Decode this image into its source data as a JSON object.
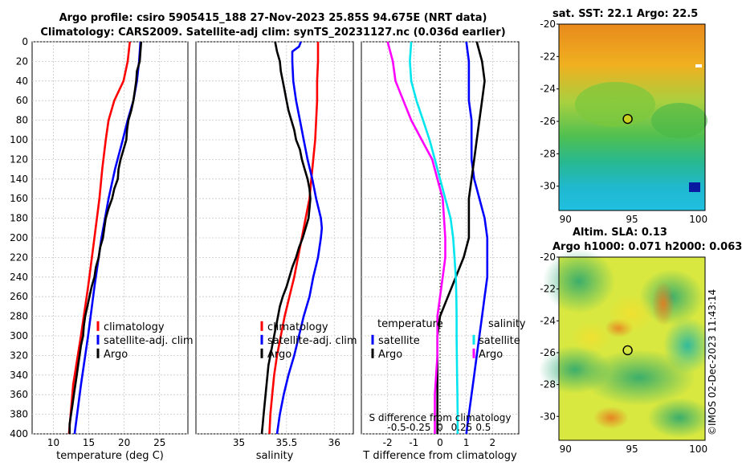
{
  "header": {
    "title_line1": "Argo profile: csiro 5905415_188 27-Nov-2023 25.85S 94.675E (NRT data)",
    "title_line2": "Climatology: CARS2009. Satellite-adj clim: synTS_20231127.nc (0.036d earlier)"
  },
  "maps": {
    "sst_title": "sat. SST: 22.1 Argo: 22.5",
    "sla_title": "Altim. SLA: 0.13",
    "sla_subtitle": "Argo h1000: 0.071 h2000: 0.063",
    "lat_ticks": [
      "-20",
      "-22",
      "-24",
      "-26",
      "-28",
      "-30"
    ],
    "lon_ticks": [
      "90",
      "95",
      "100"
    ],
    "float_position": {
      "lon": 94.675,
      "lat": -25.85
    }
  },
  "credit": "©IMOS 02-Dec-2023 11:43:14",
  "colors": {
    "climatology": "#ff0000",
    "satellite": "#0000ff",
    "argo": "#000000",
    "s_diff": "#ff00ff",
    "s_sat": "#00e5ee"
  },
  "chart_data": [
    {
      "type": "line",
      "id": "temperature",
      "xlabel": "temperature (deg C)",
      "ylabel": "",
      "xlim": [
        7,
        29
      ],
      "ylim": [
        400,
        0
      ],
      "xticks": [
        "10",
        "15",
        "20",
        "25"
      ],
      "yticks": [
        "0",
        "20",
        "40",
        "60",
        "80",
        "100",
        "120",
        "140",
        "160",
        "180",
        "200",
        "220",
        "240",
        "260",
        "280",
        "300",
        "320",
        "340",
        "360",
        "380",
        "400"
      ],
      "legend": [
        "climatology",
        "satellite-adj. clim",
        "Argo"
      ],
      "series": [
        {
          "name": "climatology",
          "depth": [
            0,
            20,
            40,
            60,
            80,
            100,
            130,
            160,
            200,
            250,
            300,
            350,
            400
          ],
          "values": [
            20.8,
            20.5,
            19.9,
            18.6,
            17.8,
            17.4,
            16.9,
            16.5,
            15.8,
            14.9,
            13.9,
            12.8,
            12.2
          ]
        },
        {
          "name": "satellite-adj. clim",
          "depth": [
            0,
            20,
            40,
            60,
            80,
            100,
            130,
            160,
            200,
            250,
            300,
            350,
            400
          ],
          "values": [
            22.3,
            22.1,
            21.8,
            21.3,
            20.5,
            19.8,
            18.7,
            17.8,
            16.8,
            15.8,
            14.9,
            13.9,
            13.0
          ]
        },
        {
          "name": "Argo",
          "depth": [
            0,
            10,
            20,
            30,
            40,
            50,
            60,
            70,
            80,
            90,
            100,
            110,
            120,
            130,
            140,
            150,
            160,
            170,
            180,
            190,
            200,
            210,
            220,
            230,
            240,
            250,
            260,
            270,
            280,
            290,
            300,
            310,
            320,
            330,
            340,
            350,
            360,
            370,
            380,
            390,
            400
          ],
          "values": [
            22.4,
            22.3,
            22.2,
            21.8,
            21.7,
            21.5,
            21.3,
            21.0,
            20.6,
            20.4,
            20.3,
            19.9,
            19.5,
            19.2,
            19.1,
            18.6,
            18.3,
            17.8,
            17.4,
            17.2,
            17.0,
            16.6,
            16.4,
            16.0,
            15.8,
            15.4,
            15.1,
            14.8,
            14.5,
            14.3,
            14.2,
            13.9,
            13.7,
            13.5,
            13.3,
            13.1,
            12.9,
            12.7,
            12.5,
            12.3,
            12.3
          ]
        }
      ]
    },
    {
      "type": "line",
      "id": "salinity",
      "xlabel": "salinity",
      "xlim": [
        34.55,
        36.2
      ],
      "ylim": [
        400,
        0
      ],
      "xticks": [
        "35",
        "35.5",
        "36"
      ],
      "legend": [
        "climatology",
        "satellite-adj. clim",
        "Argo"
      ],
      "series": [
        {
          "name": "climatology",
          "depth": [
            0,
            20,
            40,
            60,
            80,
            100,
            120,
            140,
            160,
            180,
            200,
            220,
            240,
            260,
            280,
            300,
            320,
            340,
            360,
            380,
            400
          ],
          "values": [
            35.83,
            35.83,
            35.82,
            35.82,
            35.81,
            35.8,
            35.78,
            35.76,
            35.74,
            35.7,
            35.66,
            35.62,
            35.58,
            35.53,
            35.48,
            35.44,
            35.4,
            35.37,
            35.35,
            35.33,
            35.32
          ]
        },
        {
          "name": "satellite-adj. clim",
          "depth": [
            0,
            5,
            10,
            20,
            40,
            60,
            80,
            100,
            120,
            140,
            160,
            180,
            190,
            200,
            220,
            240,
            260,
            280,
            300,
            320,
            340,
            360,
            380,
            400
          ],
          "values": [
            35.65,
            35.63,
            35.56,
            35.56,
            35.57,
            35.6,
            35.64,
            35.68,
            35.72,
            35.77,
            35.81,
            35.86,
            35.87,
            35.86,
            35.83,
            35.78,
            35.74,
            35.68,
            35.63,
            35.58,
            35.52,
            35.47,
            35.43,
            35.4
          ]
        },
        {
          "name": "Argo",
          "depth": [
            0,
            10,
            20,
            30,
            40,
            50,
            60,
            70,
            80,
            90,
            100,
            110,
            120,
            130,
            140,
            150,
            160,
            170,
            180,
            190,
            200,
            210,
            220,
            230,
            240,
            250,
            260,
            270,
            280,
            290,
            300,
            310,
            320,
            330,
            340,
            350,
            360,
            370,
            380,
            390,
            400
          ],
          "values": [
            35.38,
            35.4,
            35.43,
            35.44,
            35.46,
            35.48,
            35.5,
            35.52,
            35.55,
            35.58,
            35.6,
            35.64,
            35.66,
            35.69,
            35.72,
            35.74,
            35.75,
            35.74,
            35.73,
            35.7,
            35.67,
            35.63,
            35.6,
            35.56,
            35.53,
            35.5,
            35.46,
            35.43,
            35.41,
            35.39,
            35.37,
            35.35,
            35.33,
            35.31,
            35.3,
            35.29,
            35.28,
            35.27,
            35.26,
            35.25,
            35.24
          ]
        }
      ]
    },
    {
      "type": "line",
      "id": "difference",
      "xlabel": "T difference from climatology",
      "xlabel2": "S difference from climatology",
      "xlim": [
        -3,
        3
      ],
      "ylim": [
        400,
        0
      ],
      "xticks": [
        "-2",
        "-1",
        "0",
        "1",
        "2"
      ],
      "s_xticks": [
        "-0.5",
        "-0.25",
        "0",
        "0.25",
        "0.5"
      ],
      "legend_left_title": "temperature",
      "legend_right_title": "salinity",
      "legend": [
        "satellite",
        "Argo",
        "satellite",
        "Argo"
      ],
      "series": [
        {
          "name": "temperature satellite",
          "depth": [
            0,
            20,
            40,
            60,
            80,
            100,
            120,
            140,
            160,
            180,
            200,
            220,
            240,
            260,
            280,
            300,
            320,
            340,
            360,
            380,
            400
          ],
          "values": [
            1.0,
            1.1,
            1.1,
            1.1,
            1.2,
            1.2,
            1.2,
            1.3,
            1.5,
            1.7,
            1.8,
            1.8,
            1.8,
            1.7,
            1.6,
            1.5,
            1.4,
            1.3,
            1.2,
            1.1,
            1.0
          ]
        },
        {
          "name": "temperature Argo",
          "depth": [
            0,
            20,
            40,
            60,
            80,
            100,
            120,
            140,
            160,
            180,
            200,
            220,
            240,
            260,
            280,
            300,
            320,
            340,
            360,
            380,
            400
          ],
          "values": [
            1.4,
            1.6,
            1.7,
            1.6,
            1.5,
            1.4,
            1.3,
            1.2,
            1.1,
            1.1,
            1.1,
            0.9,
            0.6,
            0.3,
            0.0,
            -0.1,
            -0.1,
            -0.1,
            -0.1,
            -0.1,
            -0.1
          ]
        },
        {
          "name": "salinity satellite",
          "depth": [
            0,
            20,
            40,
            60,
            80,
            100,
            120,
            140,
            160,
            180,
            200,
            220,
            240,
            260,
            280,
            300,
            320,
            340,
            360,
            380,
            400
          ],
          "values": [
            -1.1,
            -1.15,
            -1.1,
            -0.9,
            -0.65,
            -0.4,
            -0.2,
            -0.0,
            0.2,
            0.4,
            0.5,
            0.55,
            0.6,
            0.62,
            0.63,
            0.63,
            0.64,
            0.65,
            0.66,
            0.67,
            0.67
          ]
        },
        {
          "name": "salinity Argo",
          "depth": [
            0,
            20,
            40,
            60,
            80,
            100,
            120,
            140,
            160,
            180,
            200,
            220,
            240,
            260,
            280,
            300,
            320,
            340,
            360,
            380,
            400
          ],
          "values": [
            -2.0,
            -1.8,
            -1.7,
            -1.4,
            -1.1,
            -0.7,
            -0.3,
            -0.1,
            0.1,
            0.15,
            0.2,
            0.2,
            0.1,
            0.0,
            -0.1,
            -0.1,
            -0.1,
            -0.15,
            -0.2,
            -0.2,
            -0.2
          ]
        }
      ]
    }
  ]
}
